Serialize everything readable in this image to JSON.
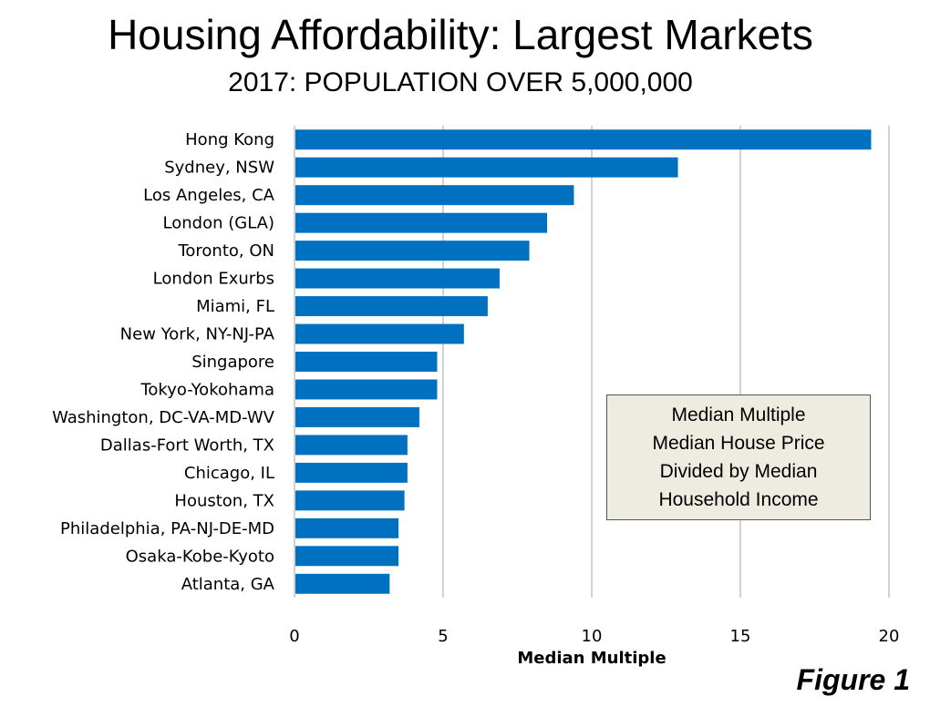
{
  "chart_data": {
    "type": "bar",
    "orientation": "horizontal",
    "title": "Housing Affordability: Largest Markets",
    "subtitle": "2017: POPULATION OVER 5,000,000",
    "categories": [
      "Hong Kong",
      "Sydney, NSW",
      "Los Angeles, CA",
      "London (GLA)",
      "Toronto, ON",
      "London Exurbs",
      "Miami, FL",
      "New York, NY-NJ-PA",
      "Singapore",
      "Tokyo-Yokohama",
      "Washington, DC-VA-MD-WV",
      "Dallas-Fort Worth, TX",
      "Chicago, IL",
      "Houston, TX",
      "Philadelphia, PA-NJ-DE-MD",
      "Osaka-Kobe-Kyoto",
      "Atlanta, GA"
    ],
    "values": [
      19.4,
      12.9,
      9.4,
      8.5,
      7.9,
      6.9,
      6.5,
      5.7,
      4.8,
      4.8,
      4.2,
      3.8,
      3.8,
      3.7,
      3.5,
      3.5,
      3.2
    ],
    "xlabel": "Median Multiple",
    "ylabel": "",
    "xlim": [
      0,
      20
    ],
    "xticks": [
      0,
      5,
      10,
      15,
      20
    ],
    "grid": true,
    "bar_color": "#0070c0"
  },
  "note": {
    "lines": [
      "Median Multiple",
      "Median House Price",
      "Divided by Median",
      "Household Income"
    ]
  },
  "figure_label": "Figure 1"
}
